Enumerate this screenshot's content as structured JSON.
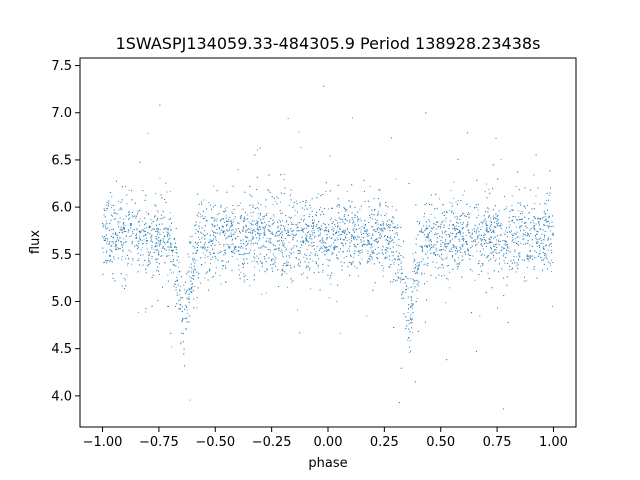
{
  "chart_data": {
    "type": "scatter",
    "title": "1SWASPJ134059.33-484305.9 Period 138928.23438s",
    "xlabel": "phase",
    "ylabel": "flux",
    "xlim": [
      -1.1,
      1.1
    ],
    "ylim": [
      3.67,
      7.58
    ],
    "xticks": [
      -1.0,
      -0.75,
      -0.5,
      -0.25,
      0.0,
      0.25,
      0.5,
      0.75,
      1.0
    ],
    "xtick_labels": [
      "−1.00",
      "−0.75",
      "−0.50",
      "−0.25",
      "0.00",
      "0.25",
      "0.50",
      "0.75",
      "1.00"
    ],
    "yticks": [
      4.0,
      4.5,
      5.0,
      5.5,
      6.0,
      6.5,
      7.0,
      7.5
    ],
    "ytick_labels": [
      "4.0",
      "4.5",
      "5.0",
      "5.5",
      "6.0",
      "6.5",
      "7.0",
      "7.5"
    ],
    "grid": false,
    "point_color": "#1f77b4",
    "series": [
      {
        "baseline_flux": 5.68,
        "primary_minimum": {
          "phase": -0.64,
          "flux": 4.75,
          "half_width": 0.075
        },
        "secondary_minimum": {
          "phase": 0.36,
          "flux": 4.75,
          "half_width": 0.075
        },
        "phase_range": [
          -1.0,
          1.0
        ],
        "flux_scatter": 0.2
      }
    ]
  }
}
